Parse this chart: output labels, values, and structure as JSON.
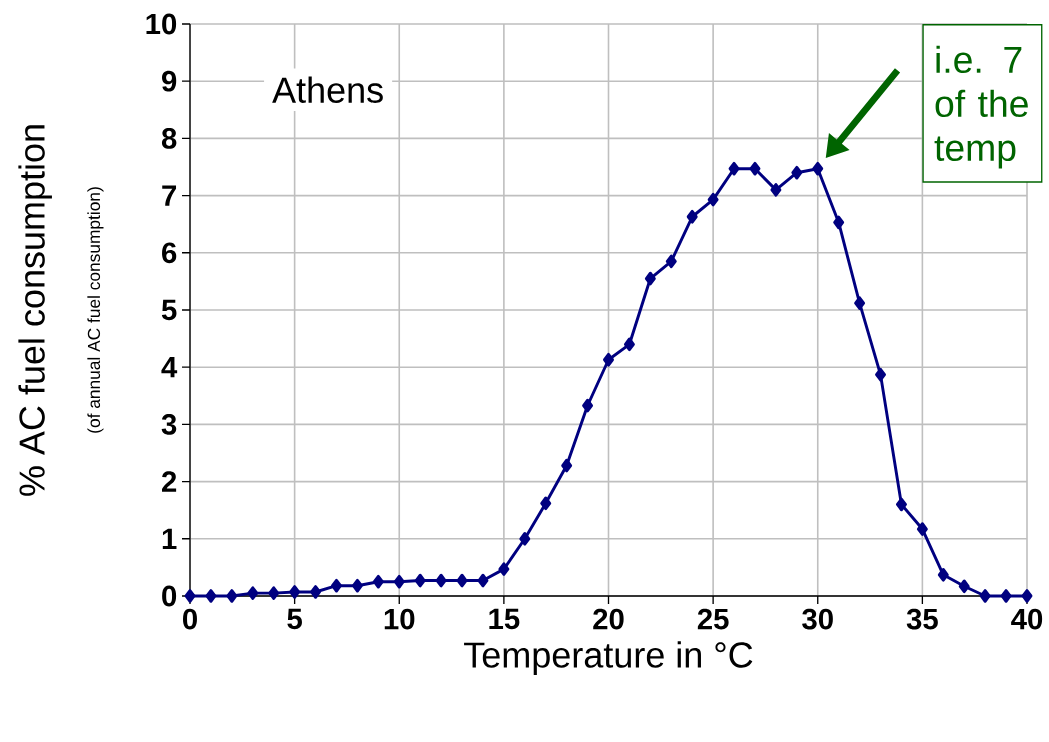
{
  "chart_data": {
    "type": "line",
    "xlabel": "Temperature in °C",
    "ylabel": "% AC fuel consumption",
    "x": [
      0,
      1,
      2,
      3,
      4,
      5,
      6,
      7,
      8,
      9,
      10,
      11,
      12,
      13,
      14,
      15,
      16,
      17,
      18,
      19,
      20,
      21,
      22,
      23,
      24,
      25,
      26,
      27,
      28,
      29,
      30,
      31,
      32,
      33,
      34,
      35,
      36,
      37,
      38,
      39,
      40
    ],
    "series": [
      {
        "color": "#000080",
        "values": [
          0,
          0,
          0,
          0.05,
          0.05,
          0.07,
          0.07,
          0.18,
          0.18,
          0.25,
          0.25,
          0.27,
          0.27,
          0.27,
          0.27,
          0.47,
          1.0,
          1.62,
          2.28,
          3.33,
          4.13,
          4.4,
          5.55,
          5.85,
          6.63,
          6.93,
          7.47,
          7.47,
          7.1,
          7.4,
          7.47,
          6.53,
          5.12,
          3.87,
          1.6,
          1.17,
          0.37,
          0.17,
          0,
          0,
          0
        ]
      }
    ],
    "xlim": [
      0,
      40
    ],
    "xticks": [
      0,
      5,
      10,
      15,
      20,
      25,
      30,
      35,
      40
    ],
    "ylim": [
      0,
      10
    ],
    "yticks": [
      0,
      1,
      2,
      3,
      4,
      5,
      6,
      7,
      8,
      9,
      10
    ],
    "grid": true,
    "marker": "diamond",
    "line_style": "solid",
    "annotations": [
      "(of annual AC fuel consumption)",
      "Athens",
      "i.e. 7 of the temp"
    ]
  }
}
